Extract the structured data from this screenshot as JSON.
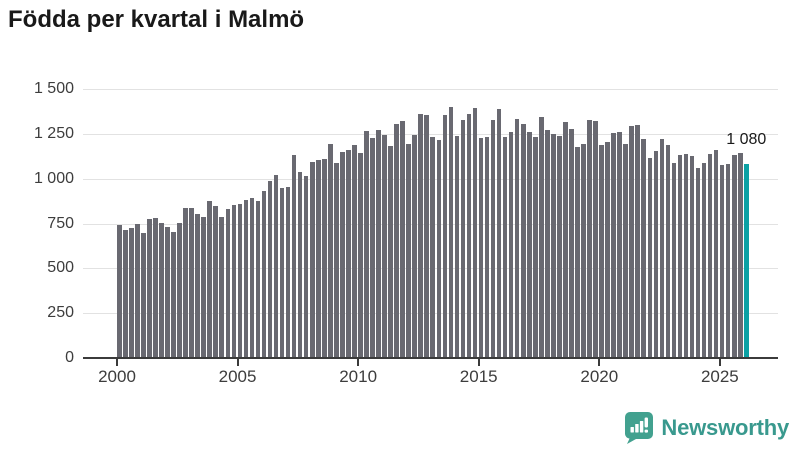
{
  "title": "Födda per kvartal i Malmö",
  "annotation": {
    "last_value_label": "1 080"
  },
  "branding": {
    "name": "Newsworthy",
    "icon": "newsworthy-speech-bubble-chart-icon",
    "icon_color": "#42a18f",
    "text_color": "#39998e"
  },
  "colors": {
    "bar": "#696971",
    "highlight": "#0ba1a4",
    "grid": "#e2e2e2",
    "axis": "#3b3b3b",
    "axis_text": "#3d3d3d",
    "title_text": "#191919"
  },
  "chart_data": {
    "type": "bar",
    "title": "Födda per kvartal i Malmö",
    "frequency": "quarterly",
    "start_period": "2000 Q1",
    "xlabel": "",
    "ylabel": "",
    "ylim": [
      0,
      1500
    ],
    "grid": "horizontal",
    "y_ticks": [
      {
        "value": 0,
        "label": "0"
      },
      {
        "value": 250,
        "label": "250"
      },
      {
        "value": 500,
        "label": "500"
      },
      {
        "value": 750,
        "label": "750"
      },
      {
        "value": 1000,
        "label": "1 000"
      },
      {
        "value": 1250,
        "label": "1 250"
      },
      {
        "value": 1500,
        "label": "1 500"
      }
    ],
    "x_ticks": [
      {
        "quarter_index": 0,
        "label": "2000"
      },
      {
        "quarter_index": 20,
        "label": "2005"
      },
      {
        "quarter_index": 40,
        "label": "2010"
      },
      {
        "quarter_index": 60,
        "label": "2015"
      },
      {
        "quarter_index": 80,
        "label": "2020"
      },
      {
        "quarter_index": 100,
        "label": "2025"
      }
    ],
    "highlight_last_bar": true,
    "last_value": 1080,
    "values": [
      740,
      715,
      725,
      745,
      700,
      775,
      780,
      755,
      730,
      705,
      755,
      835,
      835,
      805,
      785,
      875,
      850,
      785,
      830,
      855,
      860,
      880,
      895,
      875,
      930,
      990,
      1020,
      950,
      955,
      1130,
      1040,
      1015,
      1095,
      1105,
      1110,
      1195,
      1090,
      1150,
      1160,
      1190,
      1145,
      1265,
      1225,
      1270,
      1245,
      1180,
      1305,
      1320,
      1195,
      1245,
      1360,
      1355,
      1230,
      1215,
      1355,
      1400,
      1240,
      1325,
      1360,
      1395,
      1225,
      1230,
      1330,
      1390,
      1230,
      1260,
      1335,
      1305,
      1260,
      1230,
      1345,
      1270,
      1250,
      1240,
      1315,
      1280,
      1175,
      1195,
      1330,
      1320,
      1190,
      1205,
      1255,
      1260,
      1195,
      1295,
      1300,
      1220,
      1115,
      1155,
      1220,
      1190,
      1085,
      1130,
      1140,
      1125,
      1060,
      1085,
      1140,
      1160,
      1075,
      1080,
      1130,
      1145,
      1080
    ]
  }
}
